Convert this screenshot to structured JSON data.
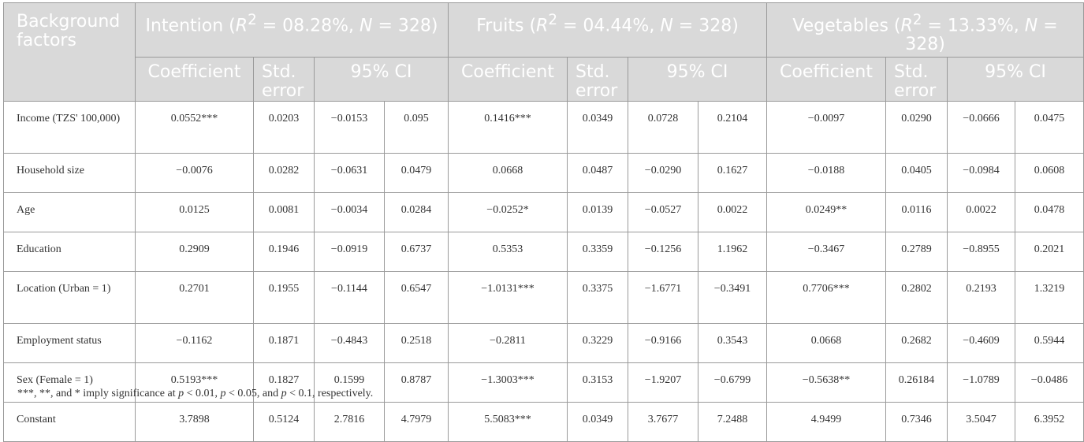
{
  "header": {
    "background_label": "Background factors",
    "groups": [
      {
        "label_html": "Intention (<i>R</i><sup>2</sup> = 08.28%, <i>N</i> = 328)"
      },
      {
        "label_html": "Fruits (<i>R</i><sup>2</sup> = 04.44%, <i>N</i> = 328)"
      },
      {
        "label_html": "Vegetables (<i>R</i><sup>2</sup> = 13.33%, <i>N</i> = 328)"
      }
    ],
    "coef": "Coefficient",
    "se": "Std. error",
    "ci": "95% CI"
  },
  "rows": [
    {
      "label": "Income (TZS' 100,000)",
      "tall": true,
      "values": [
        "0.0552***",
        "0.0203",
        "−0.0153",
        "0.095",
        "0.1416***",
        "0.0349",
        "0.0728",
        "0.2104",
        "−0.0097",
        "0.0290",
        "−0.0666",
        "0.0475"
      ]
    },
    {
      "label": "Household size",
      "tall": false,
      "values": [
        "−0.0076",
        "0.0282",
        "−0.0631",
        "0.0479",
        "0.0668",
        "0.0487",
        "−0.0290",
        "0.1627",
        "−0.0188",
        "0.0405",
        "−0.0984",
        "0.0608"
      ]
    },
    {
      "label": "Age",
      "tall": false,
      "values": [
        "0.0125",
        "0.0081",
        "−0.0034",
        "0.0284",
        "−0.0252*",
        "0.0139",
        "−0.0527",
        "0.0022",
        "0.0249**",
        "0.0116",
        "0.0022",
        "0.0478"
      ]
    },
    {
      "label": "Education",
      "tall": false,
      "values": [
        "0.2909",
        "0.1946",
        "−0.0919",
        "0.6737",
        "0.5353",
        "0.3359",
        "−0.1256",
        "1.1962",
        "−0.3467",
        "0.2789",
        "−0.8955",
        "0.2021"
      ]
    },
    {
      "label": "Location (Urban = 1)",
      "tall": true,
      "values": [
        "0.2701",
        "0.1955",
        "−0.1144",
        "0.6547",
        "−1.0131***",
        "0.3375",
        "−1.6771",
        "−0.3491",
        "0.7706***",
        "0.2802",
        "0.2193",
        "1.3219"
      ]
    },
    {
      "label": "Employment status",
      "tall": false,
      "values": [
        "−0.1162",
        "0.1871",
        "−0.4843",
        "0.2518",
        "−0.2811",
        "0.3229",
        "−0.9166",
        "0.3543",
        "0.0668",
        "0.2682",
        "−0.4609",
        "0.5944"
      ]
    },
    {
      "label": "Sex (Female = 1)",
      "tall": false,
      "values": [
        "0.5193***",
        "0.1827",
        "0.1599",
        "0.8787",
        "−1.3003***",
        "0.3153",
        "−1.9207",
        "−0.6799",
        "−0.5638**",
        "0.26184",
        "−1.0789",
        "−0.0486"
      ]
    },
    {
      "label": "Constant",
      "tall": false,
      "values": [
        "3.7898",
        "0.5124",
        "2.7816",
        "4.7979",
        "5.5083***",
        "0.0349",
        "3.7677",
        "7.2488",
        "4.9499",
        "0.7346",
        "3.5047",
        "6.3952"
      ]
    }
  ],
  "footnote_html": "***, **, and * imply significance at <i>p</i> &lt; 0.01, <i>p</i> &lt; 0.05, and <i>p</i> &lt; 0.1, respectively."
}
